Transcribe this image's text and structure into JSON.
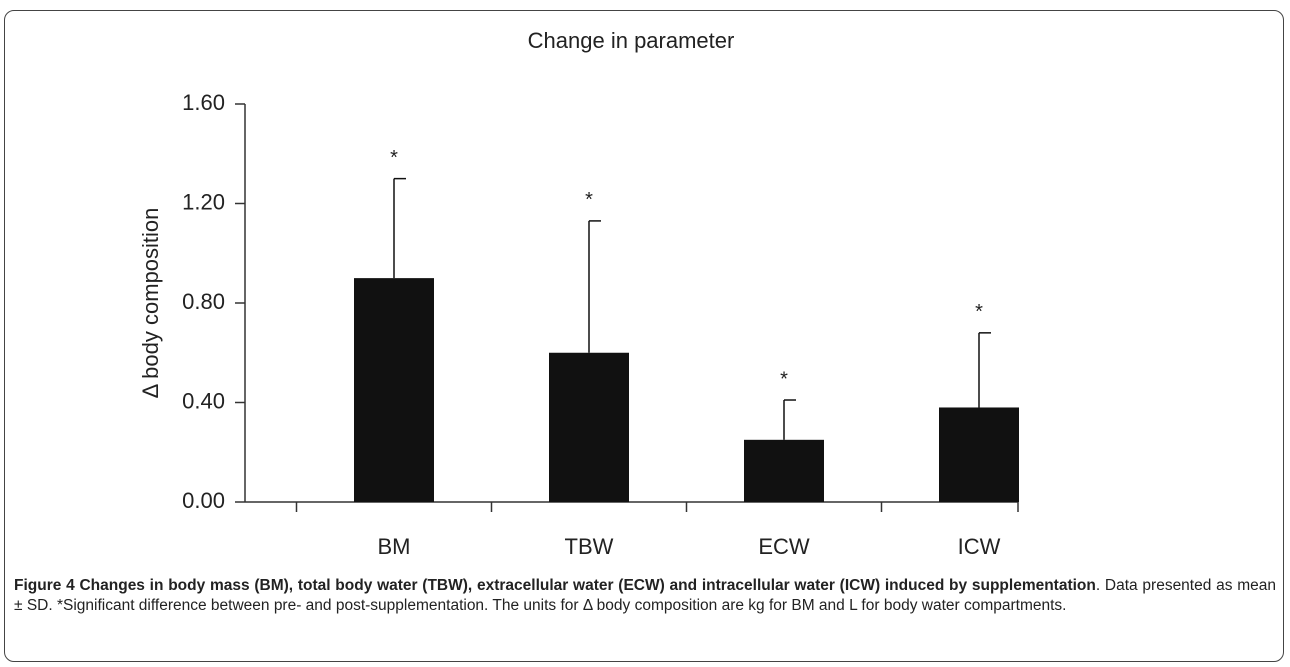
{
  "chart_data": {
    "type": "bar",
    "title": "Change in parameter",
    "y_label": "Δ body composition",
    "categories": [
      "BM",
      "TBW",
      "ECW",
      "ICW"
    ],
    "values": [
      0.9,
      0.6,
      0.25,
      0.38
    ],
    "errors": [
      0.4,
      0.53,
      0.16,
      0.3
    ],
    "annotations": [
      "*",
      "*",
      "*",
      "*"
    ],
    "color": "#111111",
    "ylim": [
      0,
      1.6
    ],
    "yticks": [
      {
        "value": 0,
        "label": "0.00"
      },
      {
        "value": 0.4,
        "label": "0.40"
      },
      {
        "value": 0.8,
        "label": "0.80"
      },
      {
        "value": 1.2,
        "label": "1.20"
      },
      {
        "value": 1.6,
        "label": "1.60"
      }
    ],
    "grid": false
  },
  "caption": {
    "title": "Figure 4 Changes in body mass (BM), total body water (TBW), extracellular water (ECW) and intracellular water (ICW) induced by supplementation",
    "text": ". Data presented as mean ± SD. *Significant difference between pre- and post-supplementation. The units for Δ body composition are kg for BM and L for body water compartments."
  }
}
